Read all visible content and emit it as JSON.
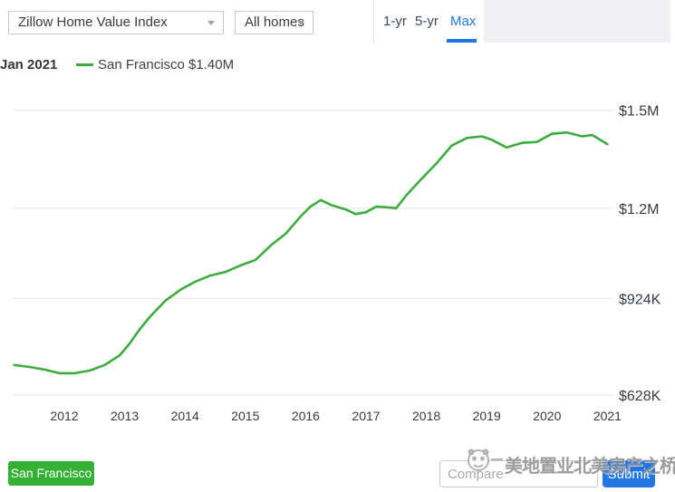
{
  "toolbar": {
    "metric_dropdown": {
      "value": "Zillow Home Value Index"
    },
    "home_type_dropdown": {
      "value": "All homes"
    },
    "range_tabs": [
      {
        "label": "1-yr",
        "selected": false
      },
      {
        "label": "5-yr",
        "selected": false
      },
      {
        "label": "Max",
        "selected": true
      }
    ]
  },
  "legend": {
    "date": "Jan 2021",
    "series_label": "San Francisco $1.40M"
  },
  "chart_data": {
    "type": "line",
    "title": "",
    "xlabel": "",
    "ylabel": "",
    "grid": "horizontal",
    "x_range": [
      2011.0,
      2021.15
    ],
    "y_range_thousands": [
      628,
      1500
    ],
    "x_ticks": [
      2012,
      2013,
      2014,
      2015,
      2016,
      2017,
      2018,
      2019,
      2020,
      2021
    ],
    "y_ticks": [
      {
        "label": "$1.5M",
        "value_k": 1500
      },
      {
        "label": "$1.2M",
        "value_k": 1200
      },
      {
        "label": "$924K",
        "value_k": 924
      },
      {
        "label": "$628K",
        "value_k": 628
      }
    ],
    "series": [
      {
        "name": "San Francisco",
        "color": "#3dab3d",
        "latest_value_label": "$1.40M",
        "latest_date": "Jan 2021",
        "x": [
          2011.17,
          2011.42,
          2011.67,
          2011.92,
          2012.17,
          2012.42,
          2012.67,
          2012.92,
          2013.08,
          2013.25,
          2013.42,
          2013.67,
          2013.92,
          2014.17,
          2014.42,
          2014.67,
          2014.92,
          2015.17,
          2015.42,
          2015.67,
          2015.92,
          2016.08,
          2016.25,
          2016.42,
          2016.67,
          2016.83,
          2017.0,
          2017.17,
          2017.33,
          2017.5,
          2017.67,
          2017.92,
          2018.17,
          2018.42,
          2018.67,
          2018.92,
          2019.08,
          2019.33,
          2019.58,
          2019.83,
          2020.08,
          2020.33,
          2020.58,
          2020.75,
          2020.92,
          2021.0
        ],
        "values_thousands": [
          720,
          714,
          706,
          695,
          695,
          703,
          720,
          750,
          785,
          830,
          868,
          916,
          950,
          975,
          994,
          1005,
          1025,
          1042,
          1086,
          1122,
          1176,
          1205,
          1225,
          1210,
          1196,
          1182,
          1188,
          1205,
          1203,
          1200,
          1240,
          1290,
          1338,
          1392,
          1415,
          1420,
          1410,
          1386,
          1400,
          1403,
          1428,
          1432,
          1420,
          1424,
          1405,
          1396
        ]
      }
    ]
  },
  "footer": {
    "city_chip": "San Francisco",
    "compare_placeholder": "Compare",
    "submit_label": "Submit"
  },
  "watermark": {
    "text": "美地置业北美房产之桥",
    "logo": "panda-logo"
  },
  "colors": {
    "accent_blue": "#2276e3",
    "chip_green": "#34b134",
    "line_green": "#3dab3d",
    "grid_gray": "#e6e6e6",
    "panel_gray": "#f0f0f2"
  }
}
